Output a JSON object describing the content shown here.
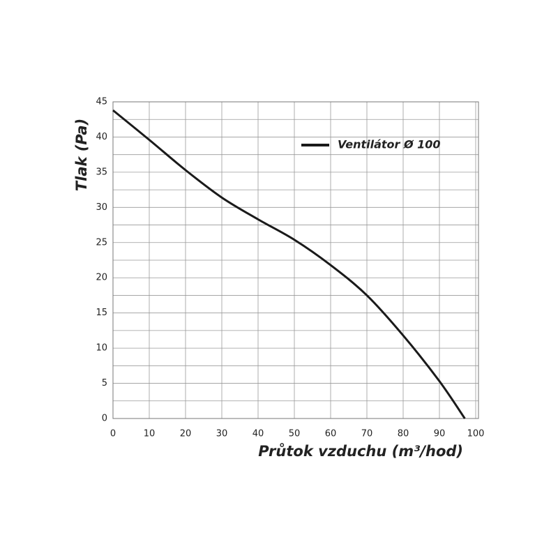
{
  "chart_data": {
    "type": "line",
    "x_label": "Průtok vzduchu (m³/hod)",
    "y_label": "Tlak (Pa)",
    "x": [
      0,
      10,
      20,
      30,
      40,
      50,
      60,
      70,
      80,
      90,
      97
    ],
    "series": [
      {
        "name": "Ventilátor Ø 100",
        "color": "#1a1a1a",
        "values": [
          43.8,
          39.6,
          35.3,
          31.4,
          28.3,
          25.4,
          21.8,
          17.5,
          11.8,
          5.3,
          0
        ]
      }
    ],
    "xlim": [
      0,
      100
    ],
    "ylim": [
      0,
      45
    ],
    "xticks": [
      0,
      10,
      20,
      30,
      40,
      50,
      60,
      70,
      80,
      90,
      100
    ],
    "yticks": [
      0,
      5,
      10,
      15,
      20,
      25,
      30,
      35,
      40,
      45
    ],
    "grid": true,
    "legend": "upper right"
  }
}
